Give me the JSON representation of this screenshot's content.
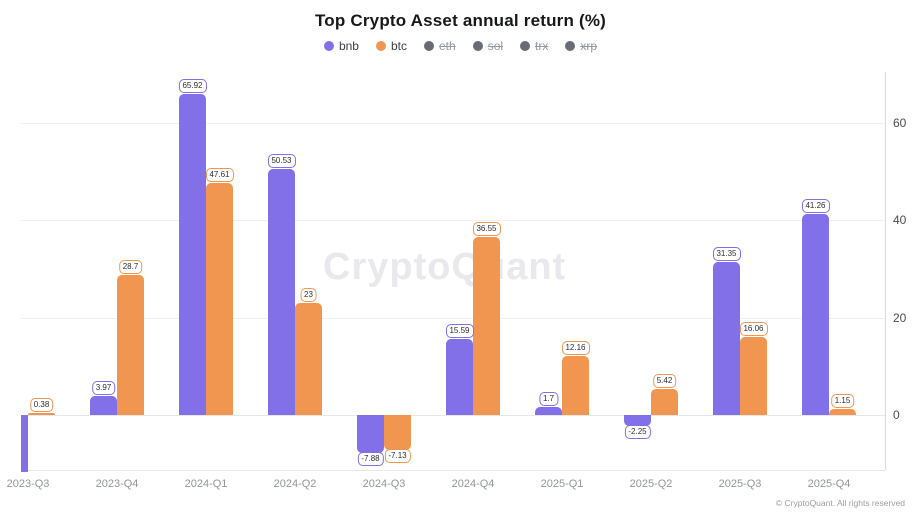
{
  "title": "Top Crypto Asset annual return (%)",
  "watermark": "CryptoQuant",
  "copyright": "© CryptoQuant. All rights reserved",
  "colors": {
    "bnb": "#8170e8",
    "btc": "#f09650",
    "disabled_dot": "#676b76",
    "grid": "#f0f0f3",
    "axis": "#dcdce0"
  },
  "legend": {
    "items": [
      {
        "label": "bnb",
        "color": "#8170e8",
        "active": true
      },
      {
        "label": "btc",
        "color": "#f09650",
        "active": true
      },
      {
        "label": "eth",
        "color": "#676b76",
        "active": false
      },
      {
        "label": "sol",
        "color": "#676b76",
        "active": false
      },
      {
        "label": "trx",
        "color": "#676b76",
        "active": false
      },
      {
        "label": "xrp",
        "color": "#676b76",
        "active": false
      }
    ]
  },
  "chart_data": {
    "type": "bar",
    "title": "Top Crypto Asset annual return (%)",
    "categories": [
      "2023-Q3",
      "2023-Q4",
      "2024-Q1",
      "2024-Q2",
      "2024-Q3",
      "2024-Q4",
      "2025-Q1",
      "2025-Q2",
      "2025-Q3",
      "2025-Q4"
    ],
    "series": [
      {
        "name": "bnb",
        "color": "#8170e8",
        "values": [
          null,
          3.97,
          65.92,
          50.53,
          -7.88,
          15.59,
          1.7,
          -2.25,
          31.35,
          41.26
        ],
        "note": "first bar (2023-Q3) is drawn clipped below the axis minimum and off the left edge; its value label is not visible"
      },
      {
        "name": "btc",
        "color": "#f09650",
        "values": [
          0.38,
          28.7,
          47.61,
          23,
          -7.13,
          36.55,
          12.16,
          5.42,
          16.06,
          1.15
        ]
      }
    ],
    "hidden_series": [
      "eth",
      "sol",
      "trx",
      "xrp"
    ],
    "xlabel": "",
    "ylabel": "",
    "yticks": [
      0,
      20,
      40,
      60
    ],
    "ylim": [
      -11.3,
      70.8
    ],
    "grid": true,
    "legend_position": "top",
    "y_axis_side": "right",
    "value_labels": true
  }
}
